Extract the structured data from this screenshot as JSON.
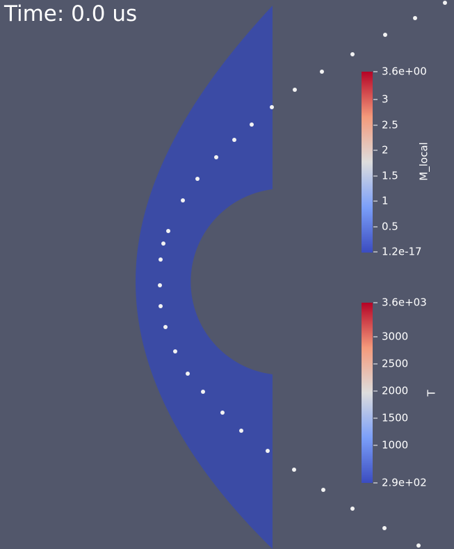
{
  "time_label": "Time: 0.0 us",
  "colors": {
    "background": "#52576b",
    "domain_fill": "#3b4ba5",
    "probe_point": "#f2f2f2",
    "colormap_low": "#3b4cc0",
    "colormap_mid": "#dddddd",
    "colormap_high": "#b40426"
  },
  "colorbars": [
    {
      "title": "M_local",
      "ticks": [
        "3.6e+00",
        "3",
        "2.5",
        "2",
        "1.5",
        "1",
        "0.5",
        "1.2e-17"
      ]
    },
    {
      "title": "T",
      "ticks": [
        "3.6e+03",
        "3000",
        "2500",
        "2000",
        "1500",
        "1000",
        "2.9e+02"
      ]
    }
  ]
}
